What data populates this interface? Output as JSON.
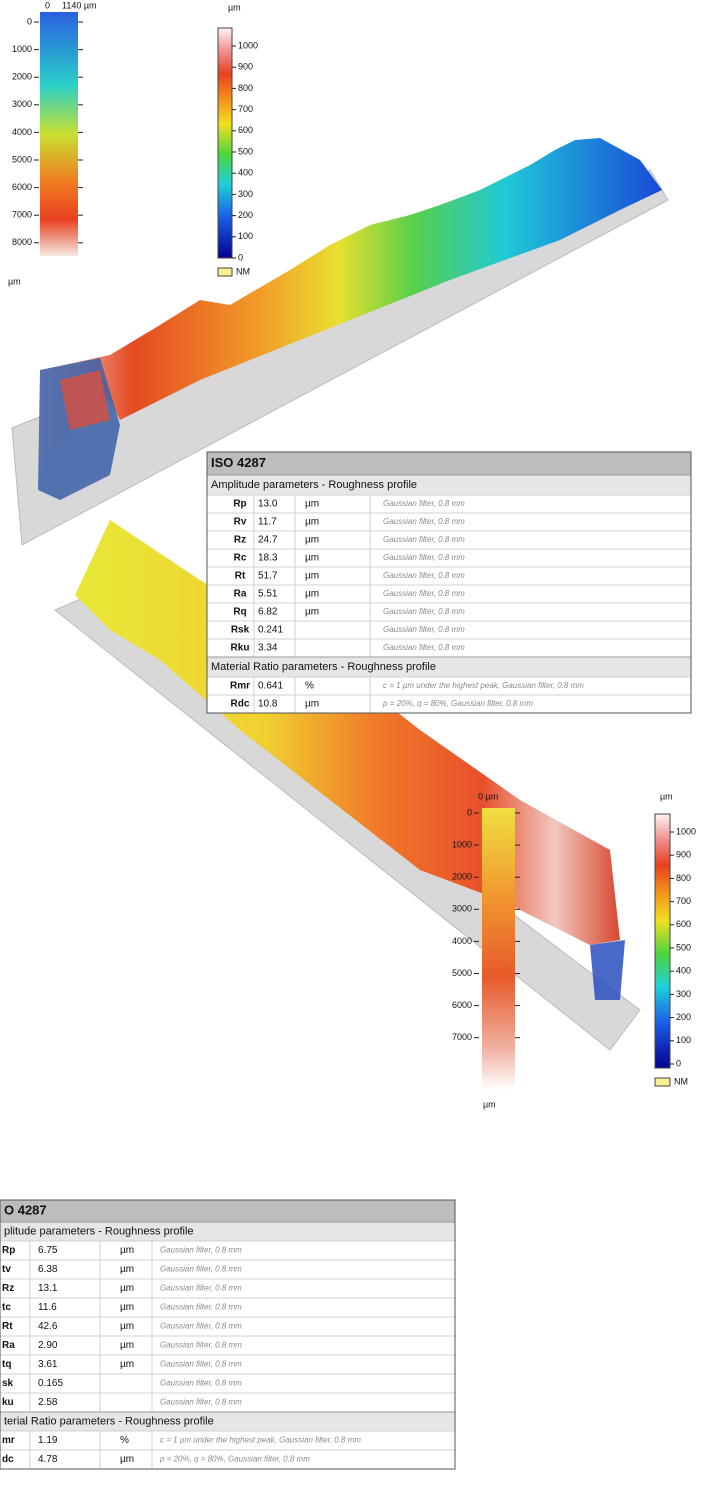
{
  "panels": [
    {
      "topview": {
        "x_labels": [
          "0",
          "1140 µm"
        ],
        "y_ticks": [
          "0",
          "1000",
          "2000",
          "3000",
          "4000",
          "5000",
          "6000",
          "7000",
          "8000"
        ],
        "y_unit": "µm"
      },
      "colorbar": {
        "unit": "µm",
        "ticks": [
          "1000",
          "900",
          "800",
          "700",
          "600",
          "500",
          "400",
          "300",
          "200",
          "100",
          "0"
        ],
        "nm_label": "NM"
      },
      "table": {
        "title": "ISO 4287",
        "sections": [
          {
            "heading": "Amplitude parameters - Roughness profile",
            "rows": [
              [
                "Rp",
                "13.0",
                "µm",
                "Gaussian filter, 0.8 mm"
              ],
              [
                "Rv",
                "11.7",
                "µm",
                "Gaussian filter, 0.8 mm"
              ],
              [
                "Rz",
                "24.7",
                "µm",
                "Gaussian filter, 0.8 mm"
              ],
              [
                "Rc",
                "18.3",
                "µm",
                "Gaussian filter, 0.8 mm"
              ],
              [
                "Rt",
                "51.7",
                "µm",
                "Gaussian filter, 0.8 mm"
              ],
              [
                "Ra",
                "5.51",
                "µm",
                "Gaussian filter, 0.8 mm"
              ],
              [
                "Rq",
                "6.82",
                "µm",
                "Gaussian filter, 0.8 mm"
              ],
              [
                "Rsk",
                "0.241",
                null,
                "Gaussian filter, 0.8 mm"
              ],
              [
                "Rku",
                "3.34",
                null,
                "Gaussian filter, 0.8 mm"
              ]
            ]
          },
          {
            "heading": "Material Ratio parameters - Roughness profile",
            "rows": [
              [
                "Rmr",
                "0.641",
                "%",
                "c = 1 µm under the highest peak, Gaussian filter, 0.8 mm"
              ],
              [
                "Rdc",
                "10.8",
                "µm",
                "p = 20%, q = 80%, Gaussian filter, 0.8 mm"
              ]
            ]
          }
        ]
      }
    },
    {
      "topview": {
        "x_labels": [
          "0 µm"
        ],
        "y_ticks": [
          "0",
          "1000",
          "2000",
          "3000",
          "4000",
          "5000",
          "6000",
          "7000"
        ],
        "y_unit": "µm"
      },
      "colorbar": {
        "unit": "µm",
        "ticks": [
          "1000",
          "900",
          "800",
          "700",
          "600",
          "500",
          "400",
          "300",
          "200",
          "100",
          "0"
        ],
        "nm_label": "NM"
      },
      "table": {
        "title": "O 4287",
        "sections": [
          {
            "heading": "plitude parameters - Roughness profile",
            "rows": [
              [
                "Rp",
                "6.75",
                "µm",
                "Gaussian filter, 0.8 mm"
              ],
              [
                "tv",
                "6.38",
                "µm",
                "Gaussian filter, 0.8 mm"
              ],
              [
                "Rz",
                "13.1",
                "µm",
                "Gaussian filter, 0.8 mm"
              ],
              [
                "tc",
                "11.6",
                "µm",
                "Gaussian filter, 0.8 mm"
              ],
              [
                "Rt",
                "42.6",
                "µm",
                "Gaussian filter, 0.8 mm"
              ],
              [
                "Ra",
                "2.90",
                "µm",
                "Gaussian filter, 0.8 mm"
              ],
              [
                "tq",
                "3.61",
                "µm",
                "Gaussian filter, 0.8 mm"
              ],
              [
                "sk",
                "0.165",
                null,
                "Gaussian filter, 0.8 mm"
              ],
              [
                "ku",
                "2.58",
                null,
                "Gaussian filter, 0.8 mm"
              ]
            ]
          },
          {
            "heading": "terial Ratio parameters - Roughness profile",
            "rows": [
              [
                "mr",
                "1.19",
                "%",
                "c = 1 µm under the highest peak, Gaussian filter, 0.8 mm"
              ],
              [
                "dc",
                "4.78",
                "µm",
                "p = 20%, q = 80%, Gaussian filter, 0.8 mm"
              ]
            ]
          }
        ]
      }
    }
  ]
}
